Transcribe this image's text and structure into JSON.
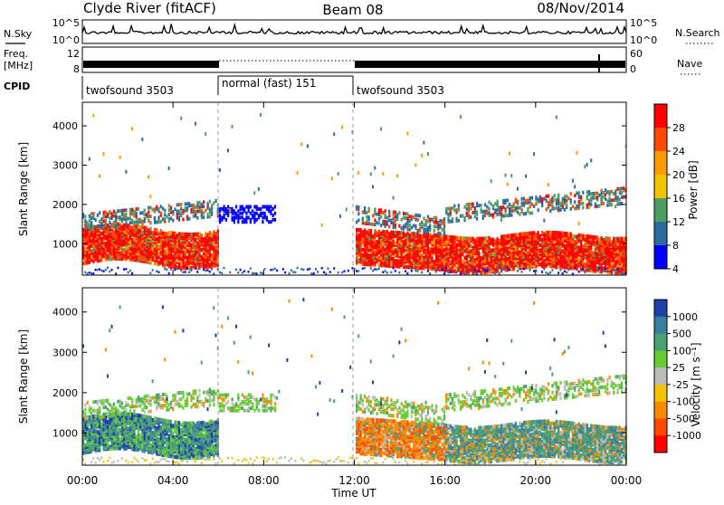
{
  "header": {
    "station": "Clyde River (fitACF)",
    "beam": "Beam 08",
    "date": "08/Nov/2014"
  },
  "panels": {
    "nsky": {
      "left_label": "N.Sky",
      "ticks_left": [
        "10^5",
        "10^0"
      ],
      "right_label": "N.Search",
      "ticks_right": [
        "10^5",
        "10^0"
      ]
    },
    "freq": {
      "left_label_line1": "Freq.",
      "left_label_line2": "[MHz]",
      "ticks_left": [
        "12",
        "8"
      ],
      "right_label": "Nave",
      "ticks_right": [
        "60",
        "0"
      ]
    },
    "cpid": {
      "label": "CPID",
      "segments": [
        {
          "label": "twofsound 3503",
          "start_hour": 0,
          "end_hour": 6
        },
        {
          "label": "normal (fast) 151",
          "start_hour": 6,
          "end_hour": 12
        },
        {
          "label": "twofsound 3503",
          "start_hour": 12,
          "end_hour": 24
        }
      ]
    }
  },
  "chart_data": [
    {
      "type": "heatmap",
      "name": "power",
      "ylabel": "Slant Range [km]",
      "xlim": [
        0,
        24
      ],
      "ylim": [
        200,
        4600
      ],
      "yticks": [
        "1000",
        "2000",
        "3000",
        "4000"
      ],
      "colorbar": {
        "label": "Power [dB]",
        "ticks": [
          "28",
          "24",
          "20",
          "16",
          "12",
          "8",
          "4"
        ],
        "colors": [
          "#ff0000",
          "#ff4a00",
          "#ff9b00",
          "#f2c400",
          "#4e9c5f",
          "#2b6b9e",
          "#0000ff"
        ]
      }
    },
    {
      "type": "heatmap",
      "name": "velocity",
      "ylabel": "Slant Range [km]",
      "xlim": [
        0,
        24
      ],
      "ylim": [
        200,
        4600
      ],
      "yticks": [
        "1000",
        "2000",
        "3000",
        "4000"
      ],
      "colorbar": {
        "label": "Velocity [m s⁻¹]",
        "ticks": [
          "1000",
          "500",
          "100",
          "25",
          "-25",
          "-100",
          "-500",
          "-1000"
        ],
        "colors": [
          "#1f3fa8",
          "#3a7fa0",
          "#4aa070",
          "#66cc33",
          "#bbbbbb",
          "#f2c400",
          "#ff8a00",
          "#ff4a00",
          "#ff0000"
        ]
      }
    }
  ],
  "xaxis": {
    "label": "Time UT",
    "ticks": [
      "00:00",
      "04:00",
      "08:00",
      "12:00",
      "16:00",
      "20:00",
      "00:00"
    ]
  }
}
